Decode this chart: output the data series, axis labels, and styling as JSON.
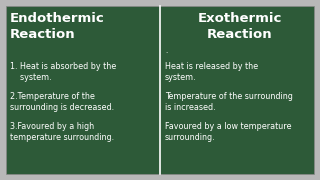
{
  "board_bg": "#2d5a38",
  "outer_bg": "#b8b8b8",
  "divider_color": "#ffffff",
  "text_color": "#ffffff",
  "left_title": "Endothermic\nReaction",
  "right_title": "Exothermic\nReaction",
  "left_points": [
    "1. Heat is absorbed by the\n    system.",
    "2.Temperature of the\nsurrounding is decreased.",
    "3.Favoured by a high\ntemperature surrounding."
  ],
  "right_points": [
    "Heat is released by the\nsystem.",
    "Temperature of the surrounding\nis increased.",
    "Favoured by a low temperature\nsurrounding."
  ],
  "dot": ".",
  "title_fontsize": 9.5,
  "body_fontsize": 5.8
}
